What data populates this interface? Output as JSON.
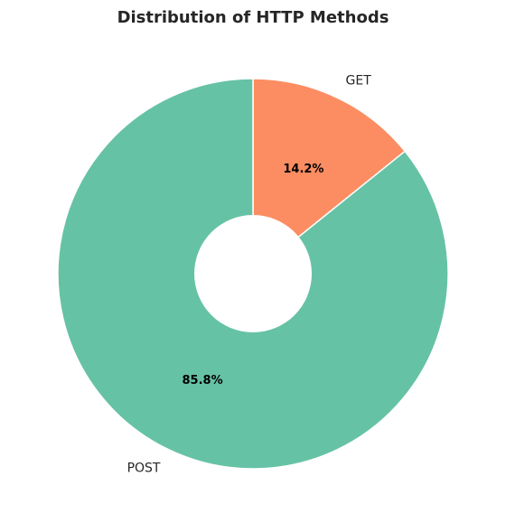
{
  "chart_data": {
    "type": "pie",
    "title": "Distribution of HTTP Methods",
    "categories": [
      "GET",
      "POST"
    ],
    "values": [
      14.2,
      85.8
    ],
    "percent_labels": [
      "14.2%",
      "85.8%"
    ],
    "colors": [
      "#fc8d62",
      "#66c2a5"
    ],
    "donut": true,
    "start_angle": "top (12 o'clock)",
    "direction": "clockwise"
  }
}
